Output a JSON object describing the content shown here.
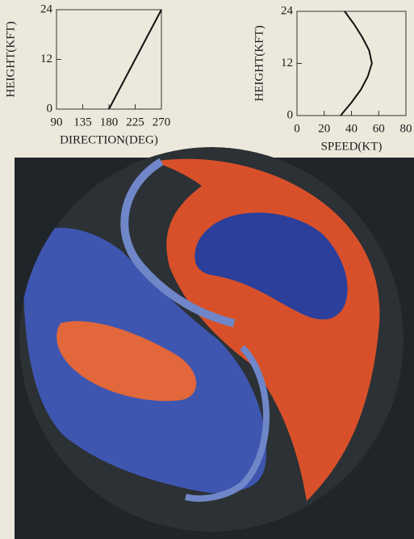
{
  "chart_data": [
    {
      "type": "line",
      "x_label": "DIRECTION(DEG)",
      "y_label": "HEIGHT(KFT)",
      "x": [
        180,
        225,
        270
      ],
      "values": [
        0,
        12,
        24
      ],
      "color": "#111111",
      "xlim": [
        90,
        270
      ],
      "xticks": [
        90,
        135,
        180,
        225,
        270
      ],
      "ylim": [
        0,
        24
      ],
      "yticks": [
        0,
        12,
        24
      ]
    },
    {
      "type": "line",
      "x_label": "SPEED(KT)",
      "y_label": "HEIGHT(KFT)",
      "x": [
        32,
        40,
        47,
        52,
        55,
        53,
        48,
        42,
        35
      ],
      "values": [
        0,
        3,
        6,
        9,
        12,
        15,
        18,
        21,
        24
      ],
      "color": "#111111",
      "xlim": [
        0,
        80
      ],
      "xticks": [
        0,
        20,
        40,
        60,
        80
      ],
      "ylim": [
        0,
        24
      ],
      "yticks": [
        0,
        12,
        24
      ]
    }
  ]
}
